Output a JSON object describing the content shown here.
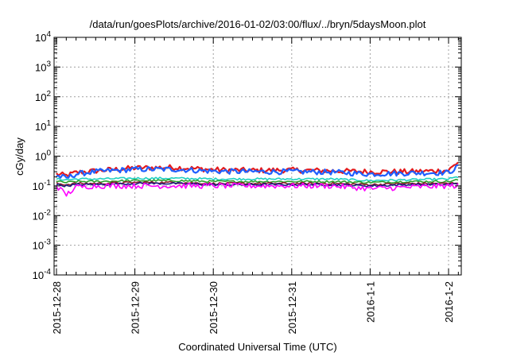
{
  "chart_data": {
    "type": "line",
    "title": "/data/run/goesPlots/archive/2016-01-02/03:00/flux/../bryn/5daysMoon.plot",
    "xlabel": "Coordinated Universal Time (UTC)",
    "ylabel": "cGy/day",
    "yscale": "log",
    "ylim": [
      0.0001,
      10000
    ],
    "y_ticks": [
      {
        "exp": -4,
        "base": "10",
        "sup": "-4"
      },
      {
        "exp": -3,
        "base": "10",
        "sup": "-3"
      },
      {
        "exp": -2,
        "base": "10",
        "sup": "-2"
      },
      {
        "exp": -1,
        "base": "10",
        "sup": "-1"
      },
      {
        "exp": 0,
        "base": "10",
        "sup": "0"
      },
      {
        "exp": 1,
        "base": "10",
        "sup": "1"
      },
      {
        "exp": 2,
        "base": "10",
        "sup": "2"
      },
      {
        "exp": 3,
        "base": "10",
        "sup": "3"
      },
      {
        "exp": 4,
        "base": "10",
        "sup": "4"
      }
    ],
    "xlim": [
      "2015-12-28 00:00",
      "2016-01-02 03:00"
    ],
    "x_ticks": [
      {
        "day": 0,
        "label": "2015-12-28"
      },
      {
        "day": 1,
        "label": "2015-12-29"
      },
      {
        "day": 2,
        "label": "2015-12-30"
      },
      {
        "day": 3,
        "label": "2015-12-31"
      },
      {
        "day": 4,
        "label": "2016-1-1"
      },
      {
        "day": 5,
        "label": "2016-1-2"
      }
    ],
    "grid": true,
    "x": [
      "2015-12-28 00:00",
      "2015-12-28 03:00",
      "2015-12-28 06:00",
      "2015-12-28 12:00",
      "2015-12-29 00:00",
      "2015-12-29 12:00",
      "2015-12-30 00:00",
      "2015-12-30 12:00",
      "2015-12-31 00:00",
      "2015-12-31 12:00",
      "2016-01-01 00:00",
      "2016-01-01 12:00",
      "2016-01-02 00:00",
      "2016-01-02 03:00"
    ],
    "series": [
      {
        "color": "#e41a1c",
        "values": [
          0.25,
          0.22,
          0.28,
          0.32,
          0.4,
          0.42,
          0.35,
          0.33,
          0.34,
          0.32,
          0.3,
          0.3,
          0.33,
          0.65
        ]
      },
      {
        "color": "#1f5fff",
        "values": [
          0.22,
          0.18,
          0.25,
          0.3,
          0.36,
          0.36,
          0.31,
          0.3,
          0.3,
          0.29,
          0.25,
          0.27,
          0.28,
          0.45
        ]
      },
      {
        "color": "#1fd0c0",
        "values": [
          0.17,
          0.16,
          0.17,
          0.17,
          0.18,
          0.18,
          0.17,
          0.17,
          0.17,
          0.17,
          0.15,
          0.16,
          0.17,
          0.2
        ]
      },
      {
        "color": "#2ca02c",
        "values": [
          0.14,
          0.13,
          0.14,
          0.14,
          0.15,
          0.15,
          0.14,
          0.14,
          0.14,
          0.14,
          0.13,
          0.14,
          0.14,
          0.16
        ]
      },
      {
        "color": "#8b1a2b",
        "values": [
          0.12,
          0.11,
          0.12,
          0.12,
          0.13,
          0.13,
          0.12,
          0.12,
          0.12,
          0.12,
          0.11,
          0.12,
          0.12,
          0.13
        ]
      },
      {
        "color": "#1a1a80",
        "values": [
          0.11,
          0.1,
          0.11,
          0.11,
          0.12,
          0.12,
          0.11,
          0.11,
          0.11,
          0.11,
          0.1,
          0.11,
          0.11,
          0.12
        ]
      },
      {
        "color": "#ff00ff",
        "values": [
          0.1,
          0.05,
          0.09,
          0.1,
          0.1,
          0.1,
          0.1,
          0.1,
          0.1,
          0.1,
          0.08,
          0.09,
          0.1,
          0.1
        ]
      }
    ]
  }
}
